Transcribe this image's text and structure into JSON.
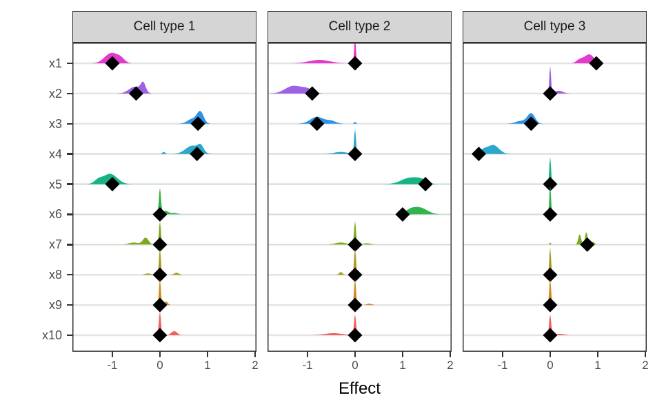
{
  "chart_data": {
    "type": "area",
    "title": "",
    "xlabel": "Effect",
    "ylabel": "",
    "x_tick_labels": [
      "-1",
      "0",
      "1",
      "2"
    ],
    "x_tick_values": [
      -1,
      0,
      1,
      2
    ],
    "x_range": [
      -1.84,
      2.03
    ],
    "categories": [
      "x1",
      "x2",
      "x3",
      "x4",
      "x5",
      "x6",
      "x7",
      "x8",
      "x9",
      "x10"
    ],
    "colors": [
      "#E33BCE",
      "#9D62E4",
      "#2E93E8",
      "#2BA7C9",
      "#17B287",
      "#33B34E",
      "#7EA81F",
      "#A89A1D",
      "#D2891F",
      "#F3605B"
    ],
    "grid_color": "#E4E4E4",
    "header_bg": "#D5D5D5",
    "border_color": "#333333",
    "diamond_color": "#000000",
    "legend": "none",
    "panels": [
      {
        "label": "Cell type 1",
        "rows": [
          {
            "var": "x1",
            "diamond": -1.0,
            "kernels": [
              [
                -1.02,
                0.14,
                15
              ],
              [
                -0.82,
                0.08,
                5
              ]
            ]
          },
          {
            "var": "x2",
            "diamond": -0.5,
            "kernels": [
              [
                -0.52,
                0.13,
                10
              ],
              [
                -0.35,
                0.05,
                13
              ]
            ]
          },
          {
            "var": "x3",
            "diamond": 0.8,
            "kernels": [
              [
                0.85,
                0.07,
                17
              ],
              [
                0.68,
                0.1,
                7
              ]
            ]
          },
          {
            "var": "x4",
            "diamond": 0.78,
            "kernels": [
              [
                0.68,
                0.14,
                12
              ],
              [
                0.86,
                0.06,
                9
              ],
              [
                0.08,
                0.03,
                3
              ]
            ]
          },
          {
            "var": "x5",
            "diamond": -1.0,
            "kernels": [
              [
                -1.05,
                0.15,
                15
              ],
              [
                -1.3,
                0.08,
                5
              ]
            ]
          },
          {
            "var": "x6",
            "diamond": 0.0,
            "kernels": [
              [
                0,
                0.022,
                38
              ],
              [
                0.12,
                0.06,
                5
              ],
              [
                0.3,
                0.07,
                2
              ]
            ]
          },
          {
            "var": "x7",
            "diamond": 0.0,
            "kernels": [
              [
                0,
                0.02,
                34
              ],
              [
                -0.3,
                0.06,
                10
              ],
              [
                -0.55,
                0.1,
                3
              ]
            ]
          },
          {
            "var": "x8",
            "diamond": 0.0,
            "kernels": [
              [
                0,
                0.02,
                38
              ],
              [
                0.35,
                0.05,
                3
              ],
              [
                -0.25,
                0.06,
                2
              ]
            ]
          },
          {
            "var": "x9",
            "diamond": 0.0,
            "kernels": [
              [
                0,
                0.02,
                38
              ],
              [
                0.13,
                0.035,
                5
              ]
            ]
          },
          {
            "var": "x10",
            "diamond": 0.0,
            "kernels": [
              [
                0,
                0.022,
                34
              ],
              [
                0.3,
                0.06,
                6
              ]
            ]
          }
        ]
      },
      {
        "label": "Cell type 2",
        "rows": [
          {
            "var": "x1",
            "diamond": 0.0,
            "kernels": [
              [
                0,
                0.018,
                38
              ],
              [
                -0.75,
                0.22,
                5
              ]
            ]
          },
          {
            "var": "x2",
            "diamond": -0.9,
            "kernels": [
              [
                -1.3,
                0.17,
                11
              ],
              [
                -1.0,
                0.12,
                6
              ]
            ]
          },
          {
            "var": "x3",
            "diamond": -0.8,
            "kernels": [
              [
                -0.8,
                0.14,
                10
              ],
              [
                -0.5,
                0.1,
                4
              ],
              [
                0,
                0.018,
                3
              ]
            ]
          },
          {
            "var": "x4",
            "diamond": 0.0,
            "kernels": [
              [
                0,
                0.02,
                36
              ],
              [
                -0.3,
                0.14,
                3
              ]
            ]
          },
          {
            "var": "x5",
            "diamond": 1.48,
            "kernels": [
              [
                1.15,
                0.18,
                9
              ],
              [
                1.4,
                0.12,
                5
              ]
            ]
          },
          {
            "var": "x6",
            "diamond": 1.0,
            "kernels": [
              [
                1.35,
                0.16,
                10
              ],
              [
                1.15,
                0.1,
                4
              ]
            ]
          },
          {
            "var": "x7",
            "diamond": 0.0,
            "kernels": [
              [
                0,
                0.02,
                34
              ],
              [
                -0.3,
                0.12,
                3
              ],
              [
                0.25,
                0.08,
                2
              ]
            ]
          },
          {
            "var": "x8",
            "diamond": 0.0,
            "kernels": [
              [
                0,
                0.02,
                38
              ],
              [
                -0.3,
                0.035,
                4
              ]
            ]
          },
          {
            "var": "x9",
            "diamond": 0.0,
            "kernels": [
              [
                0,
                0.02,
                38
              ],
              [
                0.3,
                0.05,
                2
              ]
            ]
          },
          {
            "var": "x10",
            "diamond": 0.0,
            "kernels": [
              [
                0,
                0.022,
                30
              ],
              [
                -0.45,
                0.18,
                3
              ]
            ]
          }
        ]
      },
      {
        "label": "Cell type 3",
        "rows": [
          {
            "var": "x1",
            "diamond": 0.97,
            "kernels": [
              [
                0.82,
                0.1,
                13
              ],
              [
                0.62,
                0.07,
                5
              ]
            ]
          },
          {
            "var": "x2",
            "diamond": 0.0,
            "kernels": [
              [
                0,
                0.018,
                40
              ],
              [
                0.18,
                0.09,
                4
              ]
            ]
          },
          {
            "var": "x3",
            "diamond": -0.4,
            "kernels": [
              [
                -0.4,
                0.08,
                15
              ],
              [
                -0.62,
                0.11,
                4
              ]
            ]
          },
          {
            "var": "x4",
            "diamond": -1.5,
            "kernels": [
              [
                -1.2,
                0.12,
                13
              ],
              [
                -1.4,
                0.07,
                5
              ]
            ]
          },
          {
            "var": "x5",
            "diamond": 0.0,
            "kernels": [
              [
                0,
                0.018,
                40
              ]
            ]
          },
          {
            "var": "x6",
            "diamond": 0.0,
            "kernels": [
              [
                0,
                0.018,
                42
              ]
            ]
          },
          {
            "var": "x7",
            "diamond": 0.78,
            "kernels": [
              [
                0.62,
                0.03,
                15
              ],
              [
                0.76,
                0.028,
                18
              ],
              [
                0.9,
                0.035,
                4
              ],
              [
                0,
                0.015,
                3
              ]
            ]
          },
          {
            "var": "x8",
            "diamond": 0.0,
            "kernels": [
              [
                0,
                0.018,
                40
              ]
            ]
          },
          {
            "var": "x9",
            "diamond": 0.0,
            "kernels": [
              [
                0,
                0.02,
                38
              ]
            ]
          },
          {
            "var": "x10",
            "diamond": 0.0,
            "kernels": [
              [
                0,
                0.022,
                30
              ],
              [
                0.2,
                0.09,
                2
              ]
            ]
          }
        ]
      }
    ]
  }
}
